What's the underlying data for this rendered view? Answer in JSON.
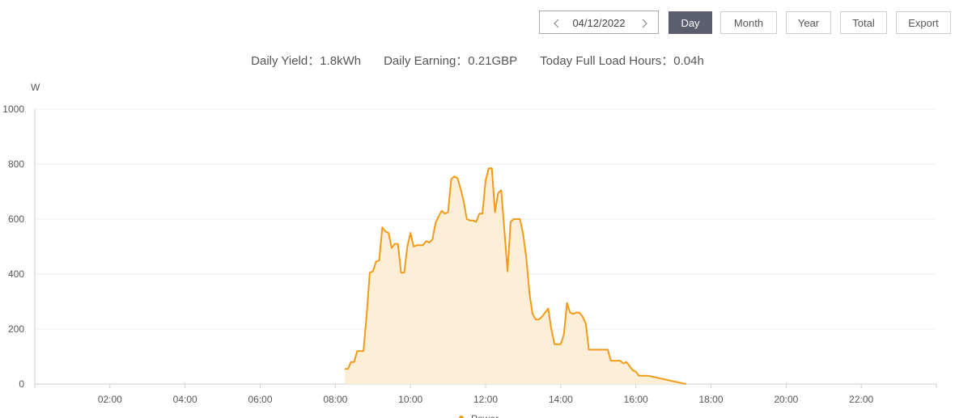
{
  "toolbar": {
    "date": "04/12/2022",
    "buttons": [
      "Day",
      "Month",
      "Year",
      "Total",
      "Export"
    ],
    "active": "Day"
  },
  "summary": [
    {
      "label": "Daily Yield：",
      "value": "1.8kWh"
    },
    {
      "label": "Daily Earning：",
      "value": "0.21GBP"
    },
    {
      "label": "Today Full Load Hours：",
      "value": "0.04h"
    }
  ],
  "chart_data": {
    "type": "area",
    "y_unit": "W",
    "x": [
      "08:15",
      "08:20",
      "08:25",
      "08:30",
      "08:35",
      "08:40",
      "08:45",
      "08:50",
      "08:55",
      "09:00",
      "09:05",
      "09:10",
      "09:15",
      "09:20",
      "09:25",
      "09:30",
      "09:35",
      "09:40",
      "09:45",
      "09:50",
      "09:55",
      "10:00",
      "10:05",
      "10:10",
      "10:15",
      "10:20",
      "10:25",
      "10:30",
      "10:35",
      "10:40",
      "10:45",
      "10:50",
      "10:55",
      "11:00",
      "11:05",
      "11:10",
      "11:15",
      "11:20",
      "11:25",
      "11:30",
      "11:35",
      "11:40",
      "11:45",
      "11:50",
      "11:55",
      "12:00",
      "12:05",
      "12:10",
      "12:15",
      "12:20",
      "12:25",
      "12:30",
      "12:35",
      "12:40",
      "12:45",
      "12:50",
      "12:55",
      "13:00",
      "13:05",
      "13:10",
      "13:15",
      "13:20",
      "13:25",
      "13:30",
      "13:35",
      "13:40",
      "13:45",
      "13:50",
      "13:55",
      "14:00",
      "14:05",
      "14:10",
      "14:15",
      "14:20",
      "14:25",
      "14:30",
      "14:35",
      "14:40",
      "14:45",
      "14:50",
      "14:55",
      "15:00",
      "15:05",
      "15:10",
      "15:15",
      "15:20",
      "15:25",
      "15:30",
      "15:35",
      "15:40",
      "15:45",
      "15:50",
      "15:55",
      "16:00",
      "16:05",
      "16:10",
      "16:20",
      "16:30",
      "16:40",
      "16:50",
      "17:00",
      "17:10",
      "17:20"
    ],
    "series": [
      {
        "name": "Power",
        "color": "#f29b18",
        "fill": "#fdeed8",
        "values": [
          55,
          55,
          80,
          80,
          120,
          120,
          120,
          250,
          405,
          410,
          445,
          450,
          570,
          555,
          550,
          495,
          510,
          510,
          405,
          405,
          500,
          550,
          500,
          505,
          505,
          505,
          520,
          515,
          525,
          585,
          610,
          630,
          620,
          625,
          745,
          755,
          750,
          710,
          665,
          600,
          595,
          595,
          590,
          620,
          620,
          740,
          785,
          785,
          625,
          695,
          705,
          560,
          410,
          590,
          600,
          600,
          600,
          545,
          460,
          330,
          255,
          235,
          235,
          245,
          260,
          275,
          200,
          145,
          145,
          145,
          180,
          295,
          260,
          255,
          260,
          260,
          245,
          220,
          125,
          125,
          125,
          125,
          125,
          125,
          125,
          85,
          85,
          85,
          85,
          75,
          80,
          65,
          50,
          45,
          30,
          30,
          30,
          25,
          20,
          15,
          10,
          5,
          0
        ]
      }
    ],
    "xlim": [
      "00:00",
      "24:00"
    ],
    "xticks": [
      "02:00",
      "04:00",
      "06:00",
      "08:00",
      "10:00",
      "12:00",
      "14:00",
      "16:00",
      "18:00",
      "20:00",
      "22:00"
    ],
    "ylim": [
      0,
      1000
    ],
    "yticks": [
      0,
      200,
      400,
      600,
      800,
      1000
    ],
    "grid": true
  }
}
